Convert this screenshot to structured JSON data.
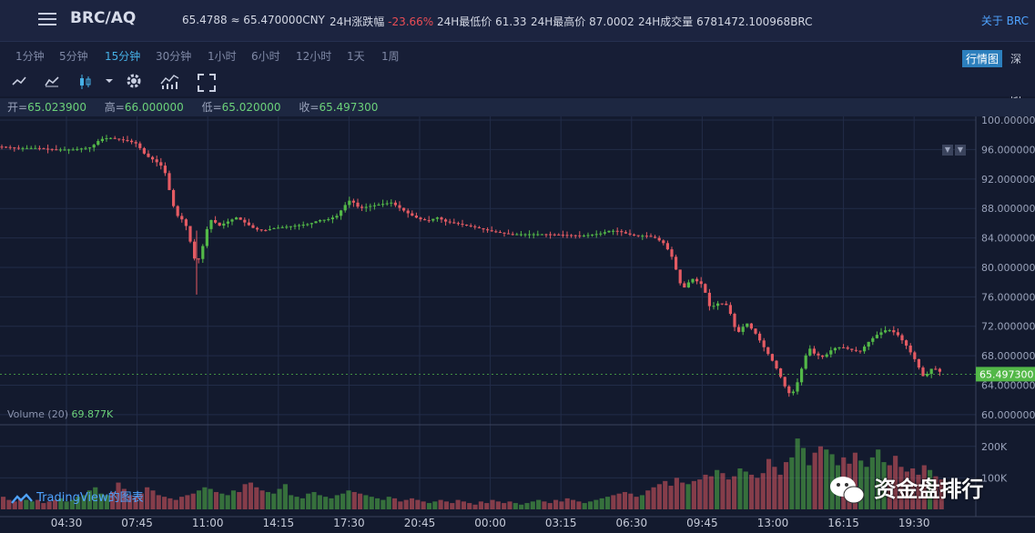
{
  "header": {
    "pair": "BRC/AQ",
    "price": "65.4788 ≈ 65.470000CNY",
    "change_label": "24H涨跌幅",
    "change_value": "-23.66%",
    "low_label": "24H最低价",
    "low_value": "61.33",
    "high_label": "24H最高价",
    "high_value": "87.0002",
    "vol_label": "24H成交量",
    "vol_value": "6781472.100968BRC",
    "about": "关于 BRC"
  },
  "intervals": [
    "1分钟",
    "5分钟",
    "15分钟",
    "30分钟",
    "1小时",
    "6小时",
    "12小时",
    "1天",
    "1周"
  ],
  "active_interval": "15分钟",
  "view_tabs": {
    "market": "行情图",
    "depth": "深度图"
  },
  "toolbar_icons": [
    "line-chart-icon",
    "area-chart-icon",
    "candle-chart-icon",
    "chevron-down-icon",
    "gear-icon",
    "indicator-icon",
    "fullscreen-icon"
  ],
  "ohlc": {
    "open_label": "开=",
    "open": "65.023900",
    "high_label": "高=",
    "high": "66.000000",
    "low_label": "低=",
    "low": "65.020000",
    "close_label": "收=",
    "close": "65.497300"
  },
  "volume": {
    "label": "Volume (20)",
    "value": "69.877K"
  },
  "branding": {
    "tradingview": "TradingView的图表",
    "watermark": "资金盘排行"
  },
  "colors": {
    "up": "#53b848",
    "down": "#e45b63",
    "background": "#131a2e",
    "accent": "#46b0e6"
  },
  "chart_data": {
    "type": "candlestick",
    "x_ticks": [
      "04:30",
      "07:45",
      "11:00",
      "14:15",
      "17:30",
      "20:45",
      "00:00",
      "03:15",
      "06:30",
      "09:45",
      "13:00",
      "16:15",
      "19:30"
    ],
    "y_ticks": [
      "60.000000",
      "64.000000",
      "68.000000",
      "72.000000",
      "76.000000",
      "80.000000",
      "84.000000",
      "88.000000",
      "92.000000",
      "96.000000",
      "100.000000"
    ],
    "ylim": [
      59,
      100.5
    ],
    "last_price": "65.497300",
    "volume_ticks": [
      "200K",
      "100K"
    ],
    "volume_ylim": [
      0,
      260000
    ],
    "close_path": [
      [
        0,
        96.4
      ],
      [
        20,
        96.2
      ],
      [
        40,
        96.2
      ],
      [
        60,
        96.0
      ],
      [
        80,
        96.0
      ],
      [
        100,
        96.3
      ],
      [
        110,
        97.4
      ],
      [
        120,
        97.6
      ],
      [
        140,
        97.2
      ],
      [
        150,
        96.8
      ],
      [
        160,
        95.2
      ],
      [
        170,
        94.5
      ],
      [
        180,
        93.5
      ],
      [
        185,
        91
      ],
      [
        190,
        88.5
      ],
      [
        195,
        87
      ],
      [
        200,
        86.5
      ],
      [
        205,
        85.5
      ],
      [
        210,
        83
      ],
      [
        215,
        80.5
      ],
      [
        220,
        81.5
      ],
      [
        225,
        84
      ],
      [
        230,
        86.5
      ],
      [
        235,
        86.3
      ],
      [
        240,
        85.6
      ],
      [
        250,
        86.2
      ],
      [
        260,
        86.8
      ],
      [
        270,
        86.0
      ],
      [
        280,
        85.2
      ],
      [
        290,
        85.0
      ],
      [
        300,
        85.3
      ],
      [
        320,
        85.6
      ],
      [
        340,
        85.9
      ],
      [
        350,
        86.4
      ],
      [
        360,
        86.5
      ],
      [
        370,
        87.0
      ],
      [
        380,
        88.6
      ],
      [
        385,
        89.2
      ],
      [
        395,
        88.0
      ],
      [
        405,
        88.3
      ],
      [
        420,
        88.6
      ],
      [
        430,
        88.8
      ],
      [
        440,
        88.0
      ],
      [
        450,
        87.2
      ],
      [
        460,
        86.6
      ],
      [
        470,
        86.3
      ],
      [
        480,
        86.8
      ],
      [
        490,
        86.2
      ],
      [
        500,
        86.0
      ],
      [
        520,
        85.5
      ],
      [
        540,
        84.9
      ],
      [
        560,
        84.5
      ],
      [
        580,
        84.5
      ],
      [
        600,
        84.5
      ],
      [
        620,
        84.4
      ],
      [
        640,
        84.3
      ],
      [
        660,
        84.6
      ],
      [
        670,
        85.0
      ],
      [
        680,
        84.9
      ],
      [
        690,
        84.5
      ],
      [
        700,
        84.3
      ],
      [
        710,
        84.3
      ],
      [
        720,
        84.0
      ],
      [
        730,
        83.2
      ],
      [
        740,
        81.0
      ],
      [
        745,
        78.5
      ],
      [
        750,
        77.0
      ],
      [
        760,
        78.5
      ],
      [
        770,
        77.8
      ],
      [
        775,
        76.5
      ],
      [
        780,
        74.5
      ],
      [
        790,
        75.2
      ],
      [
        800,
        74.8
      ],
      [
        805,
        72.5
      ],
      [
        810,
        71.0
      ],
      [
        820,
        72.5
      ],
      [
        830,
        71.0
      ],
      [
        835,
        70.0
      ],
      [
        840,
        69.0
      ],
      [
        850,
        67.0
      ],
      [
        855,
        65.8
      ],
      [
        860,
        64.5
      ],
      [
        865,
        63.0
      ],
      [
        870,
        62.8
      ],
      [
        875,
        64.0
      ],
      [
        880,
        66.0
      ],
      [
        885,
        68.0
      ],
      [
        890,
        69.0
      ],
      [
        895,
        68.2
      ],
      [
        905,
        67.8
      ],
      [
        915,
        69.0
      ],
      [
        925,
        69.2
      ],
      [
        935,
        68.8
      ],
      [
        945,
        68.6
      ],
      [
        955,
        70.0
      ],
      [
        965,
        71.0
      ],
      [
        975,
        71.6
      ],
      [
        985,
        71.0
      ],
      [
        995,
        69.5
      ],
      [
        1005,
        67.5
      ],
      [
        1015,
        65.0
      ],
      [
        1025,
        66.5
      ],
      [
        1030,
        66.0
      ],
      [
        1037,
        65.5
      ]
    ],
    "volume_series": [
      8,
      6,
      5,
      7,
      6,
      5,
      6,
      4,
      5,
      6,
      7,
      5,
      6,
      8,
      9,
      12,
      14,
      10,
      9,
      11,
      17,
      13,
      9,
      8,
      10,
      14,
      12,
      9,
      8,
      7,
      6,
      8,
      9,
      10,
      12,
      14,
      13,
      11,
      10,
      9,
      12,
      11,
      16,
      17,
      14,
      12,
      11,
      10,
      13,
      16,
      9,
      8,
      7,
      10,
      11,
      9,
      8,
      7,
      9,
      10,
      12,
      11,
      10,
      9,
      8,
      7,
      6,
      8,
      7,
      5,
      6,
      7,
      6,
      5,
      4,
      5,
      6,
      5,
      4,
      6,
      5,
      4,
      3,
      5,
      4,
      6,
      5,
      4,
      5,
      4,
      3,
      4,
      5,
      6,
      5,
      4,
      6,
      5,
      7,
      6,
      5,
      4,
      5,
      6,
      7,
      8,
      9,
      10,
      11,
      10,
      8,
      9,
      12,
      14,
      16,
      18,
      15,
      20,
      17,
      16,
      18,
      19,
      22,
      21,
      25,
      23,
      19,
      21,
      26,
      24,
      22,
      20,
      23,
      32,
      27,
      22,
      30,
      33,
      45,
      39,
      28,
      36,
      40,
      38,
      35,
      28,
      33,
      29,
      36,
      31,
      27,
      33,
      38,
      30,
      28,
      34,
      27,
      24,
      26,
      22,
      28,
      25,
      21,
      19
    ]
  }
}
